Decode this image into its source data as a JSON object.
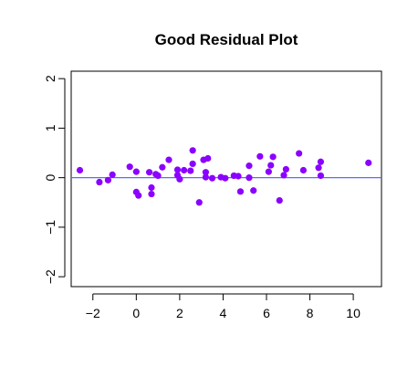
{
  "chart_data": {
    "type": "scatter",
    "title": "Good Residual Plot",
    "xlabel": "",
    "ylabel": "",
    "xlim": [
      -3,
      11.3
    ],
    "ylim": [
      -2.2,
      2.15
    ],
    "x_ticks": [
      -2,
      0,
      2,
      4,
      6,
      8,
      10
    ],
    "y_ticks": [
      -2,
      -1,
      0,
      1,
      2
    ],
    "grid": false,
    "point_color": "#8B00FF",
    "reference_line": {
      "y": 0,
      "color": "#5B6BFF"
    },
    "points": [
      {
        "x": -2.6,
        "y": 0.15
      },
      {
        "x": -1.7,
        "y": -0.09
      },
      {
        "x": -1.3,
        "y": -0.05
      },
      {
        "x": -1.1,
        "y": 0.06
      },
      {
        "x": -0.3,
        "y": 0.22
      },
      {
        "x": 0.0,
        "y": -0.29
      },
      {
        "x": 0.0,
        "y": 0.12
      },
      {
        "x": 0.1,
        "y": -0.36
      },
      {
        "x": 0.6,
        "y": 0.11
      },
      {
        "x": 0.7,
        "y": -0.2
      },
      {
        "x": 0.7,
        "y": -0.33
      },
      {
        "x": 0.9,
        "y": 0.07
      },
      {
        "x": 1.0,
        "y": 0.04
      },
      {
        "x": 1.2,
        "y": 0.21
      },
      {
        "x": 1.5,
        "y": 0.36
      },
      {
        "x": 1.9,
        "y": 0.16
      },
      {
        "x": 1.9,
        "y": 0.05
      },
      {
        "x": 2.0,
        "y": -0.03
      },
      {
        "x": 2.2,
        "y": 0.15
      },
      {
        "x": 2.5,
        "y": 0.14
      },
      {
        "x": 2.6,
        "y": 0.28
      },
      {
        "x": 2.6,
        "y": 0.55
      },
      {
        "x": 2.9,
        "y": -0.5
      },
      {
        "x": 3.1,
        "y": 0.36
      },
      {
        "x": 3.2,
        "y": 0.01
      },
      {
        "x": 3.2,
        "y": 0.11
      },
      {
        "x": 3.3,
        "y": 0.39
      },
      {
        "x": 3.5,
        "y": -0.01
      },
      {
        "x": 3.9,
        "y": 0.01
      },
      {
        "x": 4.1,
        "y": -0.01
      },
      {
        "x": 4.5,
        "y": 0.04
      },
      {
        "x": 4.7,
        "y": 0.03
      },
      {
        "x": 4.8,
        "y": -0.28
      },
      {
        "x": 5.2,
        "y": 0.24
      },
      {
        "x": 5.2,
        "y": 0.0
      },
      {
        "x": 5.4,
        "y": -0.26
      },
      {
        "x": 5.7,
        "y": 0.43
      },
      {
        "x": 6.1,
        "y": 0.12
      },
      {
        "x": 6.3,
        "y": 0.42
      },
      {
        "x": 6.2,
        "y": 0.25
      },
      {
        "x": 6.6,
        "y": -0.46
      },
      {
        "x": 6.8,
        "y": 0.05
      },
      {
        "x": 6.9,
        "y": 0.17
      },
      {
        "x": 7.5,
        "y": 0.49
      },
      {
        "x": 7.7,
        "y": 0.15
      },
      {
        "x": 8.4,
        "y": 0.2
      },
      {
        "x": 8.5,
        "y": 0.32
      },
      {
        "x": 8.5,
        "y": 0.04
      },
      {
        "x": 10.7,
        "y": 0.3
      }
    ]
  }
}
